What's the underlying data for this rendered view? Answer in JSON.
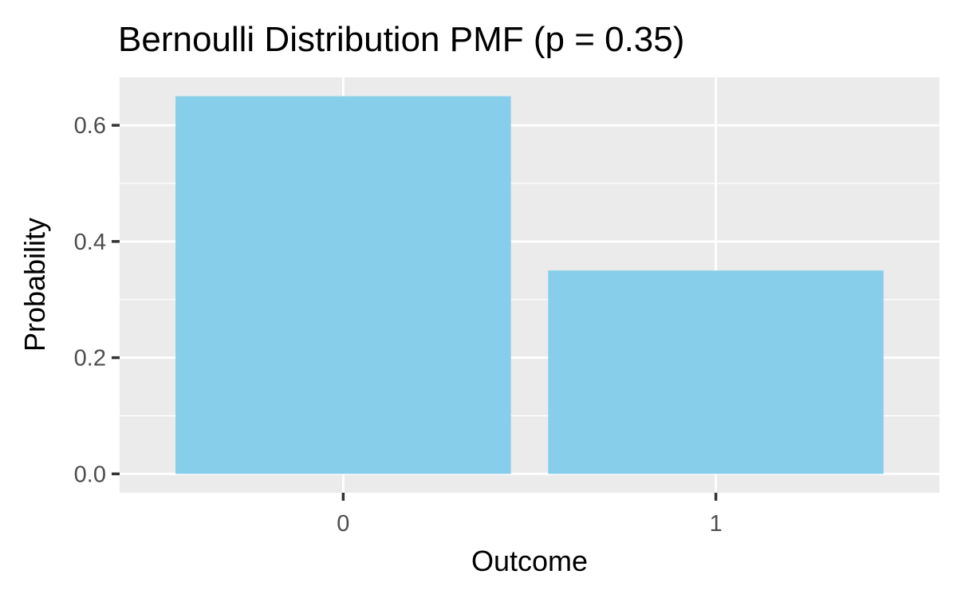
{
  "chart_data": {
    "type": "bar",
    "title": "Bernoulli Distribution PMF (p = 0.35)",
    "xlabel": "Outcome",
    "ylabel": "Probability",
    "categories": [
      "0",
      "1"
    ],
    "values": [
      0.65,
      0.35
    ],
    "ylim": [
      -0.0325,
      0.6825
    ],
    "yticks": [
      0.0,
      0.2,
      0.4,
      0.6
    ],
    "ytick_labels": [
      "0.0",
      "0.2",
      "0.4",
      "0.6"
    ],
    "grid": true,
    "legend": "none",
    "colors": {
      "bar": "#87CEEB",
      "panel": "#EBEBEB",
      "grid": "#FFFFFF",
      "tick": "#333333",
      "tick_label": "#4D4D4D",
      "text": "#000000"
    }
  }
}
